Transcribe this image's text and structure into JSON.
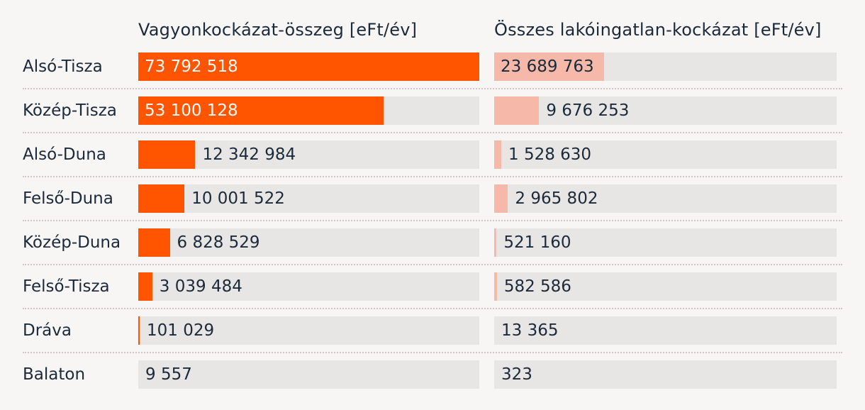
{
  "chart_data": {
    "type": "bar",
    "orientation": "horizontal",
    "categories": [
      "Alsó-Tisza",
      "Közép-Tisza",
      "Alsó-Duna",
      "Felső-Duna",
      "Közép-Duna",
      "Felső-Tisza",
      "Dráva",
      "Balaton"
    ],
    "series": [
      {
        "name": "Vagyonkockázat-összeg [eFt/év]",
        "values": [
          73792518,
          53100128,
          12342984,
          10001522,
          6828529,
          3039484,
          101029,
          9557
        ],
        "labels": [
          "73 792 518",
          "53 100 128",
          "12 342 984",
          "10 001 522",
          "6 828 529",
          "3 039 484",
          "101 029",
          "9 557"
        ],
        "color": "#ff5500"
      },
      {
        "name": "Összes lakóingatlan-kockázat [eFt/év]",
        "values": [
          23689763,
          9676253,
          1528630,
          2965802,
          521160,
          582586,
          13365,
          323
        ],
        "labels": [
          "23 689 763",
          "9 676 253",
          "1 528 630",
          "2 965 802",
          "521 160",
          "582 586",
          "13 365",
          "323"
        ],
        "color": "#f6b8a8"
      }
    ],
    "xlim": [
      0,
      73792518
    ],
    "legend": "none",
    "grid": false
  }
}
